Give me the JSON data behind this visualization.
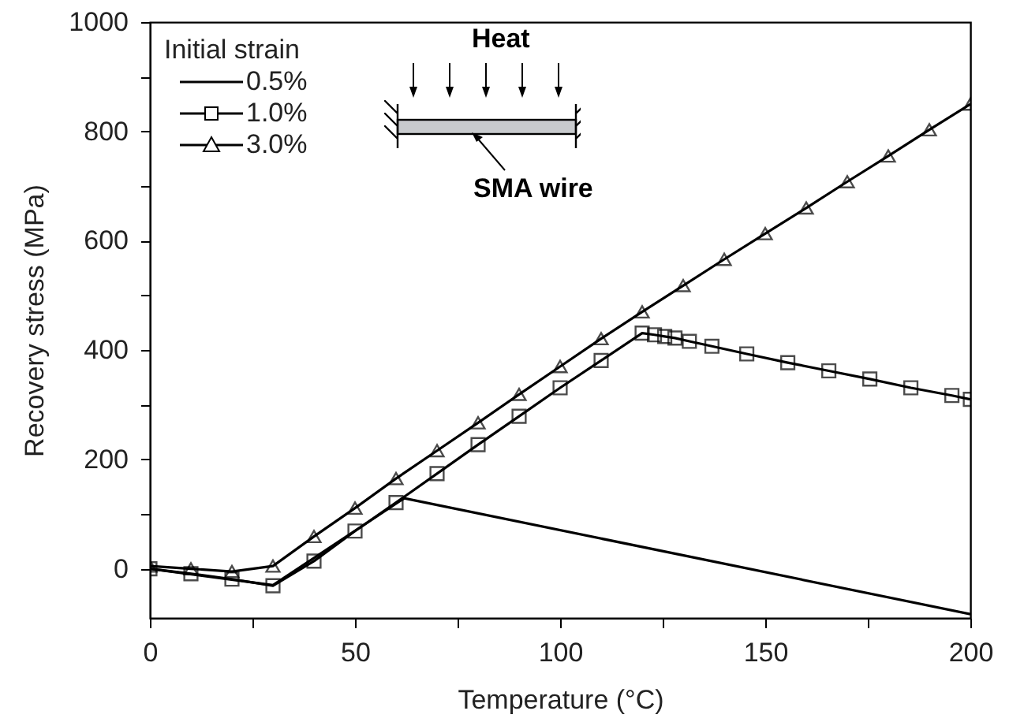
{
  "chart_data": {
    "type": "line",
    "xlabel": "Temperature (°C)",
    "ylabel": "Recovery stress (MPa)",
    "legend_title": "Initial strain",
    "legend": "top left",
    "grid": false,
    "xlim": [
      0,
      200
    ],
    "xticks": [
      0,
      {
        "value": 25,
        "label": null
      },
      50,
      {
        "value": 75,
        "label": null
      },
      100,
      {
        "value": 125,
        "label": null
      },
      150,
      {
        "value": 175,
        "label": null
      },
      200
    ],
    "ylim": [
      -90,
      1000
    ],
    "yticks": [
      0,
      {
        "value": 100,
        "label": null
      },
      200,
      {
        "value": 300,
        "label": null
      },
      400,
      {
        "value": 500,
        "label": null
      },
      600,
      {
        "value": 700,
        "label": null
      },
      800,
      {
        "value": 900,
        "label": null
      },
      1000
    ],
    "series": [
      {
        "name": "0.5%",
        "color": "#000000",
        "x": [
          0,
          30,
          62,
          200
        ],
        "values": [
          0,
          -30,
          129,
          -83
        ]
      },
      {
        "name": "1.0%",
        "color": "#000000",
        "marker": "square",
        "x": [
          0,
          10,
          20,
          30,
          40,
          50,
          60,
          70,
          80,
          90,
          100,
          110,
          120,
          123,
          125.5,
          128,
          131.5,
          137,
          145.5,
          155.5,
          165.5,
          175.5,
          185.5,
          195.5,
          200
        ],
        "values": [
          0,
          -9,
          -19,
          -31,
          14,
          69,
          121,
          174,
          227,
          279,
          331,
          381,
          431,
          428,
          425,
          422,
          416,
          407,
          393,
          377,
          362,
          347,
          331,
          317,
          310
        ]
      },
      {
        "name": "3.0%",
        "color": "#000000",
        "marker": "triangle",
        "x": [
          0,
          10,
          20,
          30,
          40,
          50,
          60,
          70,
          80,
          90,
          100,
          110,
          120,
          130,
          140,
          150,
          160,
          170,
          180,
          190,
          200
        ],
        "values": [
          5,
          0,
          -5,
          5,
          59,
          111,
          165,
          216,
          267,
          319,
          370,
          421,
          470,
          518,
          566,
          613,
          660,
          708,
          755,
          803,
          850
        ]
      }
    ],
    "annotations": [
      "Heat",
      "SMA wire"
    ]
  }
}
